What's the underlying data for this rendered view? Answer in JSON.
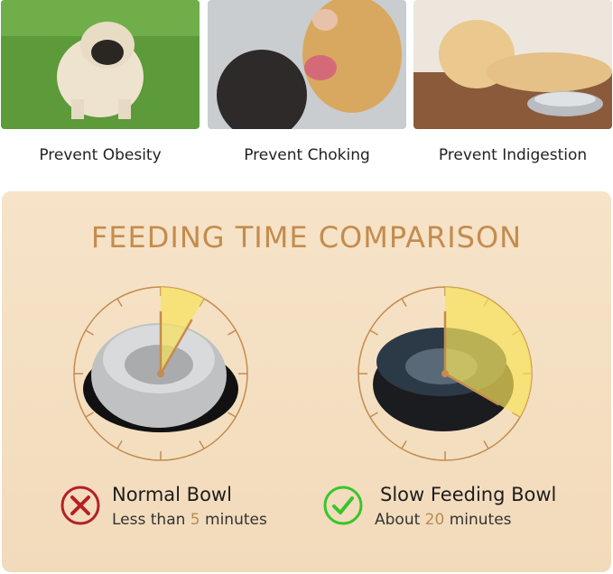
{
  "benefits": [
    {
      "label": "Prevent Obesity",
      "image": "pug-on-grass"
    },
    {
      "label": "Prevent Choking",
      "image": "golden-retriever-mouth-check"
    },
    {
      "label": "Prevent Indigestion",
      "image": "labrador-with-bowl"
    }
  ],
  "comparison": {
    "title": "FEEDING TIME COMPARISON",
    "accent_color": "#c48c4e",
    "highlight_color": "#f7e25a",
    "clock_scale_minutes": 60,
    "normal": {
      "name": "Normal Bowl",
      "prefix": "Less than ",
      "value": "5",
      "suffix": " minutes",
      "minutes": 5,
      "icon": "red-x-icon",
      "icon_color": "#b52025"
    },
    "slow": {
      "name": "Slow Feeding Bowl",
      "prefix": "About ",
      "value": "20",
      "suffix": " minutes",
      "minutes": 20,
      "icon": "green-check-icon",
      "icon_color": "#39c52a"
    }
  }
}
